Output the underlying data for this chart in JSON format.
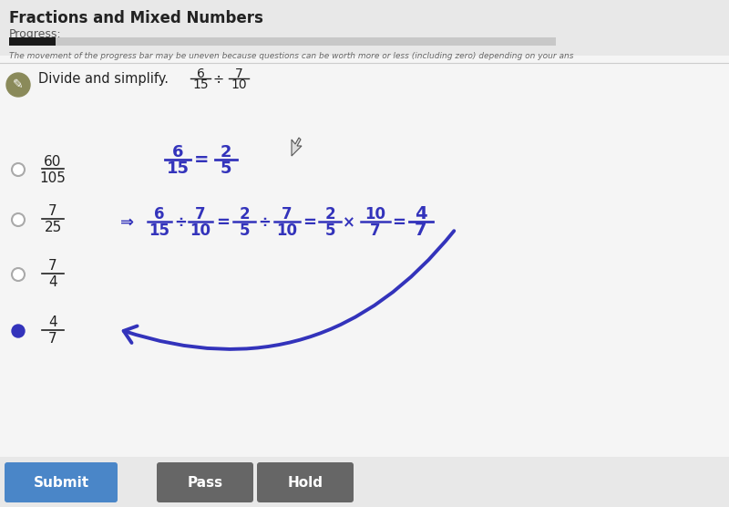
{
  "title": "Fractions and Mixed Numbers",
  "progress_label": "Progress:",
  "progress_bar_color": "#1a1a1a",
  "progress_bar_bg": "#c8c8c8",
  "progress_bar_filled": 0.085,
  "disclaimer": "The movement of the progress bar may be uneven because questions can be worth more or less (including zero) depending on your ans",
  "question": "Divide and simplify.",
  "bg_color": "#e8e8e8",
  "panel_color": "#f5f5f5",
  "handwriting_color": "#3333bb",
  "button_submit_color": "#4a86c8",
  "button_pass_color": "#666666",
  "button_hold_color": "#666666",
  "button_text_color": "#ffffff",
  "pencil_circle_color": "#8a8a5a",
  "selected_dot_color": "#3333bb",
  "unselected_circle_color": "#aaaaaa",
  "text_color": "#222222",
  "choices": [
    {
      "num": "60",
      "den": "105",
      "selected": false
    },
    {
      "num": "7",
      "den": "25",
      "selected": false
    },
    {
      "num": "7",
      "den": "4",
      "selected": false
    },
    {
      "num": "4",
      "den": "7",
      "selected": true
    }
  ]
}
